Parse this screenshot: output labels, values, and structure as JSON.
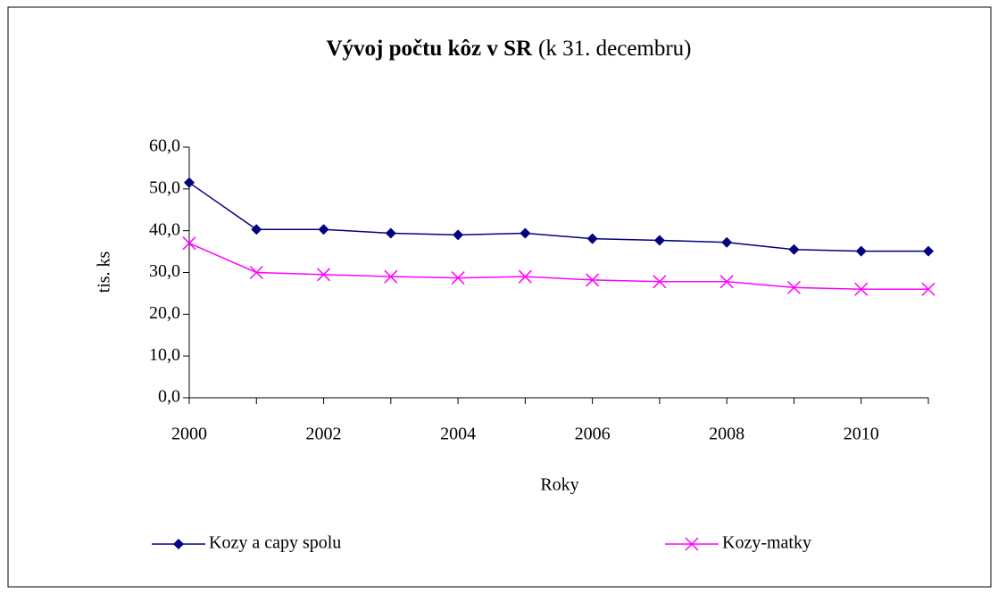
{
  "chart_data": {
    "type": "line",
    "title": "Vývoj počtu kôz v SR",
    "subtitle": "(k 31. decembru)",
    "x_label": "Roky",
    "y_label": "tis. ks",
    "x": [
      2000,
      2001,
      2002,
      2003,
      2004,
      2005,
      2006,
      2007,
      2008,
      2009,
      2010,
      2011
    ],
    "series": [
      {
        "name": "Kozy a capy spolu",
        "color": "#000080",
        "marker": "diamond",
        "values": [
          51.5,
          40.3,
          40.3,
          39.4,
          39.0,
          39.4,
          38.1,
          37.7,
          37.2,
          35.5,
          35.1,
          35.1
        ]
      },
      {
        "name": "Kozy-matky",
        "color": "#ff00ff",
        "marker": "x",
        "values": [
          37.0,
          30.0,
          29.5,
          29.0,
          28.7,
          29.0,
          28.2,
          27.8,
          27.8,
          26.4,
          26.0,
          26.0
        ]
      }
    ],
    "xlim": [
      2000,
      2011
    ],
    "xticks": [
      2000,
      2002,
      2004,
      2006,
      2008,
      2010
    ],
    "ylim": [
      0,
      60
    ],
    "yticks": [
      {
        "value": 0,
        "label": "0,0"
      },
      {
        "value": 10,
        "label": "10,0"
      },
      {
        "value": 20,
        "label": "20,0"
      },
      {
        "value": 30,
        "label": "30,0"
      },
      {
        "value": 40,
        "label": "40,0"
      },
      {
        "value": 50,
        "label": "50,0"
      },
      {
        "value": 60,
        "label": "60,0"
      }
    ],
    "legend": "bottom"
  }
}
